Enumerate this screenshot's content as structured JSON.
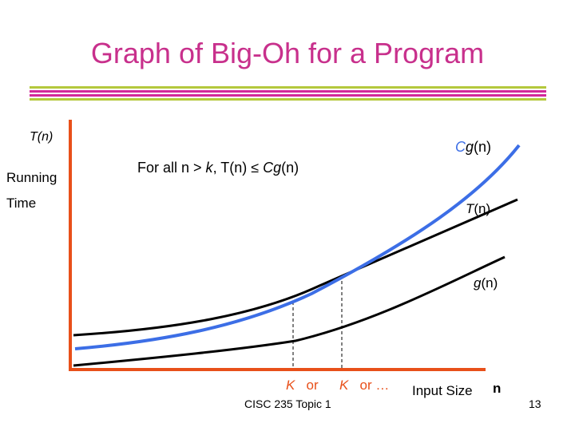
{
  "title": "Graph of Big-Oh for a Program",
  "colors": {
    "title": "#c8308c",
    "rule_green": "#b4c83c",
    "rule_pink": "#d2289b",
    "axis": "#e8501a",
    "cg_curve": "#3c6ee6",
    "black_curves": "#000000",
    "k_label": "#e8501a"
  },
  "y_axis": {
    "label_fn": "T(n)",
    "label_line2": "Running",
    "label_line3": "Time"
  },
  "x_axis": {
    "label": "Input Size",
    "var": "n"
  },
  "statement": {
    "prefix": "For all n ",
    "gt": ">",
    "k": " k",
    "middle": ", T(n) ≤ ",
    "c": "C",
    "g": "g",
    "suffix": "(n)"
  },
  "curves": {
    "cg": {
      "c": "C",
      "g": "g",
      "rest": "(n)"
    },
    "t": {
      "t": "T",
      "rest": "(n)"
    },
    "g": {
      "g": "g",
      "rest": "(n)"
    }
  },
  "k_marks": {
    "k1": "K",
    "or1": "or",
    "k2": "K",
    "or2": "or …"
  },
  "footer": {
    "course": "CISC 235 Topic 1",
    "page": "13"
  }
}
